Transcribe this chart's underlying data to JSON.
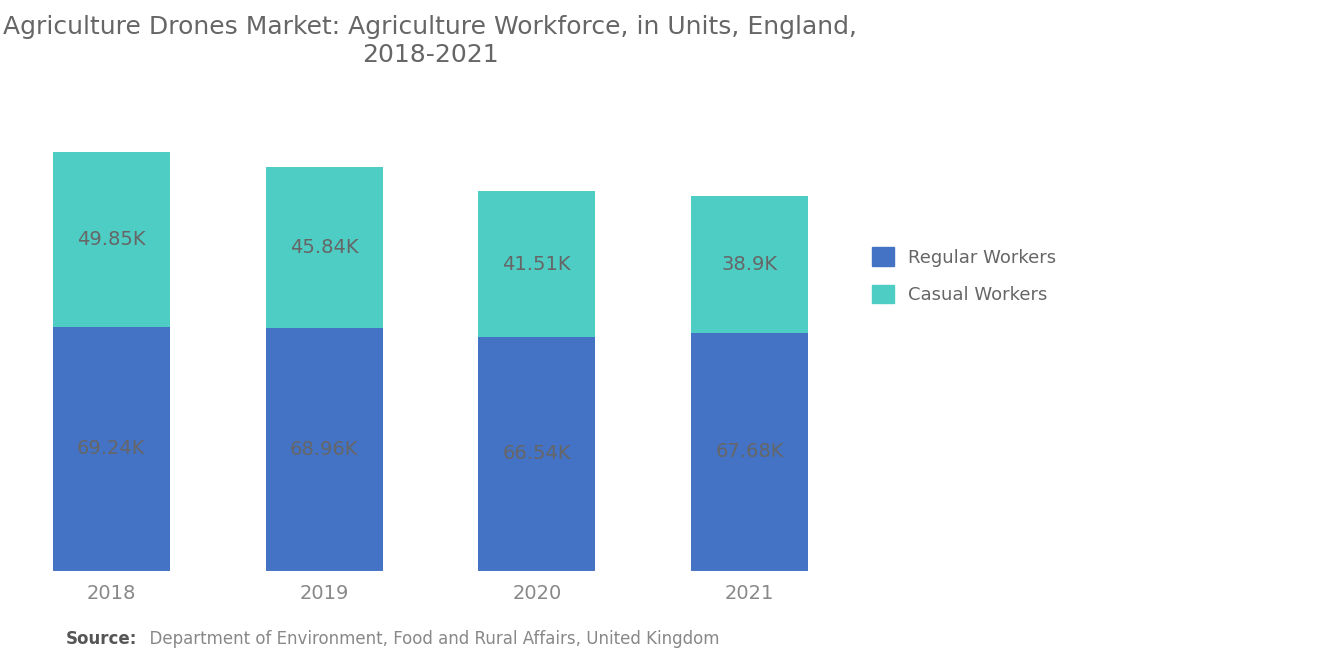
{
  "title": "Agriculture Drones Market: Agriculture Workforce, in Units, England,\n2018-2021",
  "years": [
    "2018",
    "2019",
    "2020",
    "2021"
  ],
  "regular_workers": [
    69.24,
    68.96,
    66.54,
    67.68
  ],
  "casual_workers": [
    49.85,
    45.84,
    41.51,
    38.9
  ],
  "regular_labels": [
    "69.24K",
    "68.96K",
    "66.54K",
    "67.68K"
  ],
  "casual_labels": [
    "49.85K",
    "45.84K",
    "41.51K",
    "38.9K"
  ],
  "regular_color": "#4472C4",
  "casual_color": "#4ECDC4",
  "bar_width": 0.55,
  "background_color": "#FFFFFF",
  "title_fontsize": 18,
  "label_fontsize": 14,
  "tick_fontsize": 14,
  "legend_fontsize": 13,
  "source_bold": "Source:",
  "source_rest": "  Department of Environment, Food and Rural Affairs, United Kingdom",
  "legend_labels": [
    "Regular Workers",
    "Casual Workers"
  ],
  "ylim": [
    0,
    135
  ],
  "label_color": "#666666",
  "tick_color": "#888888",
  "title_color": "#666666"
}
